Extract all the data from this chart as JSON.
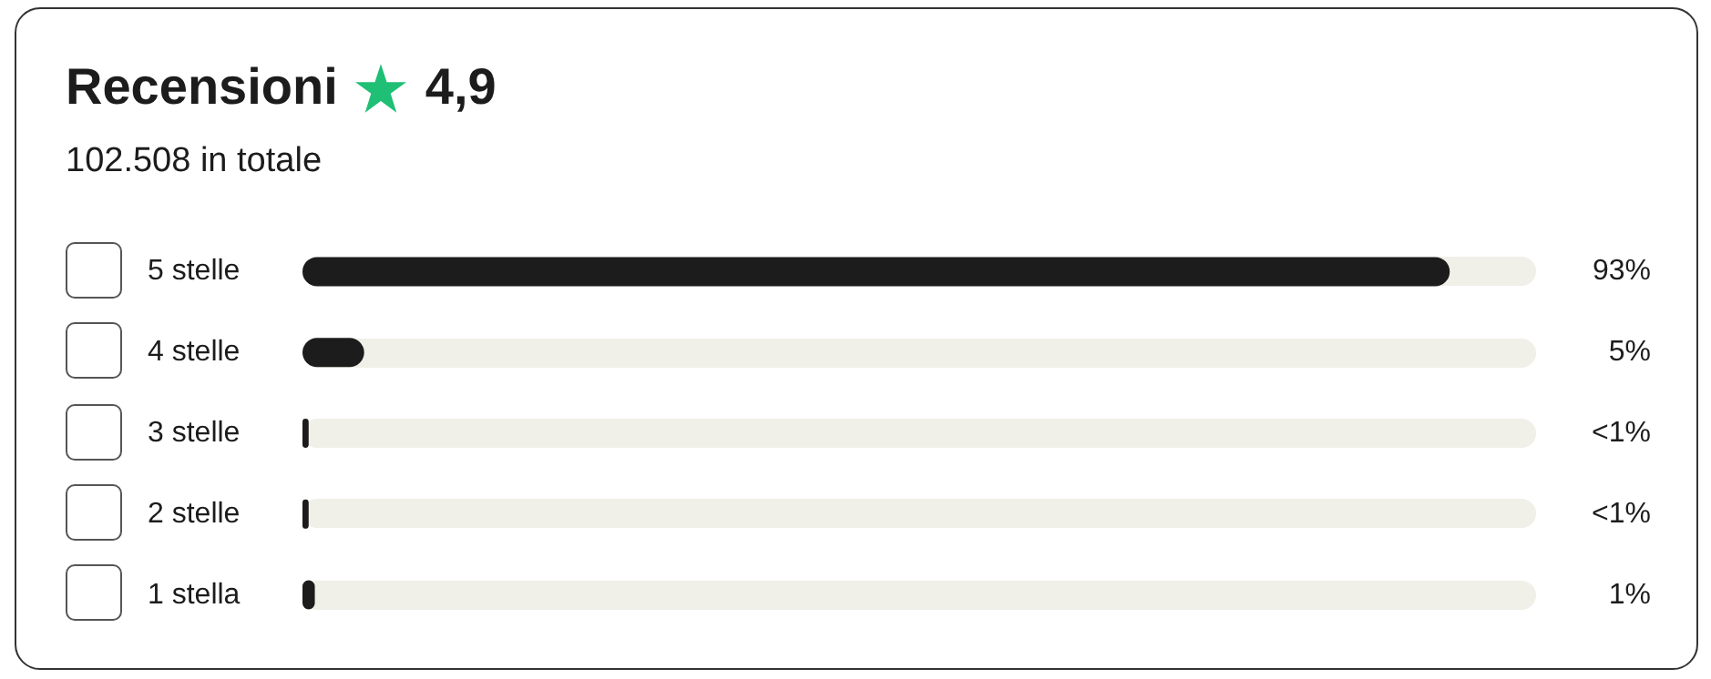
{
  "chart_data": {
    "type": "bar",
    "orientation": "horizontal",
    "title": "Recensioni",
    "subtitle": "102.508 in totale",
    "annotations": [
      "4,9"
    ],
    "categories": [
      "5 stelle",
      "4 stelle",
      "3 stelle",
      "2 stelle",
      "1 stella"
    ],
    "values": [
      93,
      5,
      0.5,
      0.5,
      1
    ],
    "value_labels": [
      "93%",
      "5%",
      "<1%",
      "<1%",
      "1%"
    ],
    "color": "#1c1c1c",
    "xlim": [
      0,
      100
    ]
  }
}
